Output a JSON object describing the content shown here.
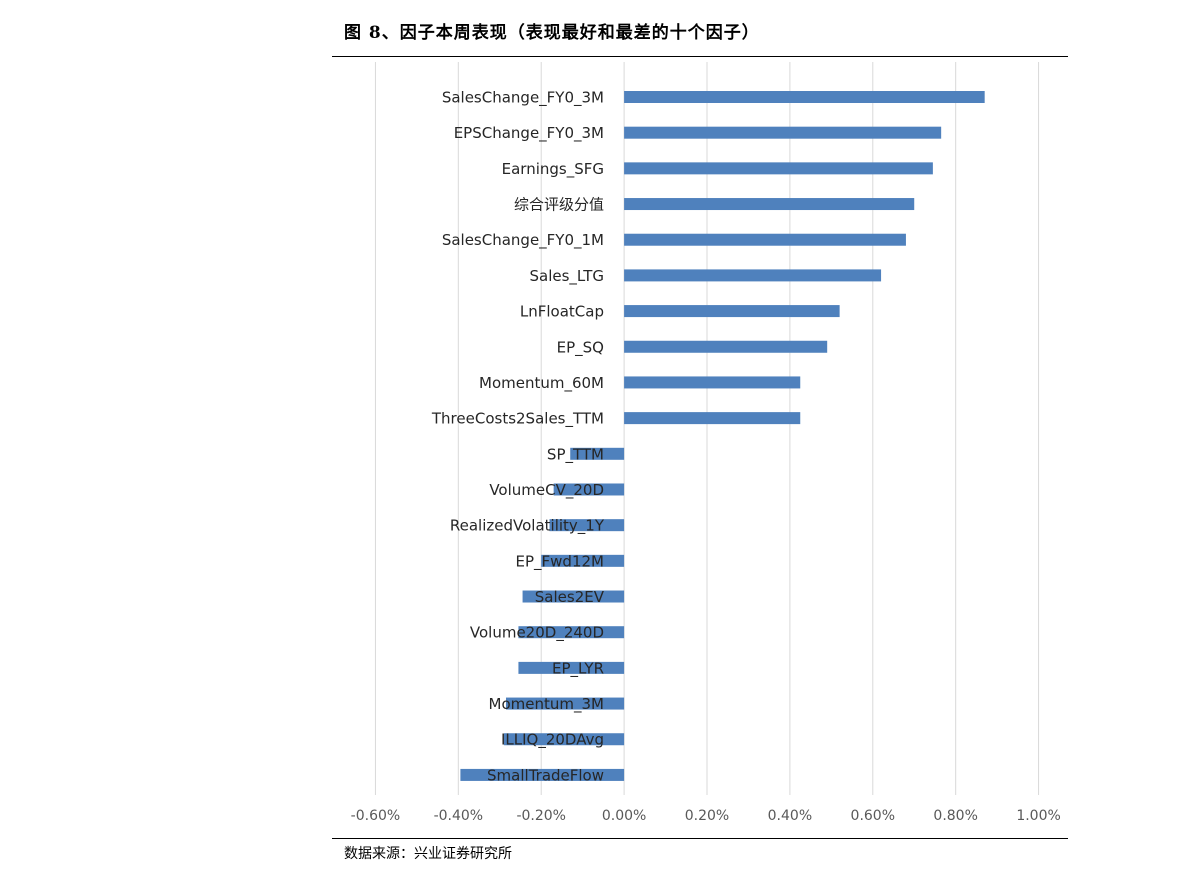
{
  "figure_title": "图 8、因子本周表现（表现最好和最差的十个因子）",
  "source_note": "数据来源：兴业证券研究所",
  "chart_data": {
    "type": "bar",
    "orientation": "horizontal",
    "categories": [
      "SalesChange_FY0_3M",
      "EPSChange_FY0_3M",
      "Earnings_SFG",
      "综合评级分值",
      "SalesChange_FY0_1M",
      "Sales_LTG",
      "LnFloatCap",
      "EP_SQ",
      "Momentum_60M",
      "ThreeCosts2Sales_TTM",
      "SP_TTM",
      "VolumeCV_20D",
      "RealizedVolatility_1Y",
      "EP_Fwd12M",
      "Sales2EV",
      "Volume20D_240D",
      "EP_LYR",
      "Momentum_3M",
      "ILLIQ_20DAvg",
      "SmallTradeFlow"
    ],
    "values": [
      0.87,
      0.765,
      0.745,
      0.7,
      0.68,
      0.62,
      0.52,
      0.49,
      0.425,
      0.425,
      -0.13,
      -0.17,
      -0.18,
      -0.2,
      -0.245,
      -0.255,
      -0.255,
      -0.285,
      -0.29,
      -0.395
    ],
    "unit": "%",
    "xlim": [
      -0.7,
      1.1
    ],
    "xticks": [
      -0.6,
      -0.4,
      -0.2,
      0.0,
      0.2,
      0.4,
      0.6,
      0.8,
      1.0
    ],
    "xtick_labels": [
      "-0.60%",
      "-0.40%",
      "-0.20%",
      "0.00%",
      "0.20%",
      "0.40%",
      "0.60%",
      "0.80%",
      "1.00%"
    ],
    "grid": "vertical",
    "legend": "none",
    "title": "",
    "xlabel": "",
    "ylabel": "",
    "bar_color": "#4f81bd",
    "grid_color": "#d9d9d9"
  }
}
